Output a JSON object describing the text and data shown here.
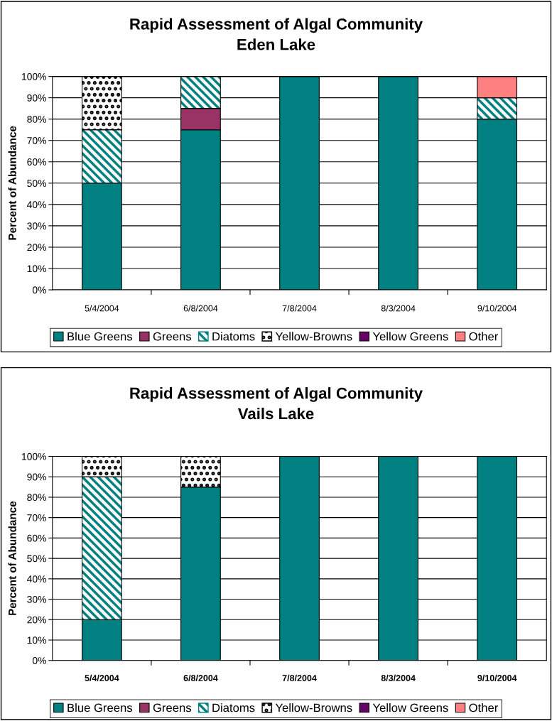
{
  "chart_data": [
    {
      "type": "bar",
      "title": "Rapid Assessment of Algal Community\nEden Lake",
      "ylabel": "Percent of Abundance",
      "stacked": true,
      "categories": [
        "5/4/2004",
        "6/8/2004",
        "7/8/2004",
        "8/3/2004",
        "9/10/2004"
      ],
      "ylim": [
        0,
        100
      ],
      "yticks": [
        {
          "value": 0,
          "label": "0%"
        },
        {
          "value": 10,
          "label": "10%"
        },
        {
          "value": 20,
          "label": "20%"
        },
        {
          "value": 30,
          "label": "30%"
        },
        {
          "value": 40,
          "label": "40%"
        },
        {
          "value": 50,
          "label": "50%"
        },
        {
          "value": 60,
          "label": "60%"
        },
        {
          "value": 70,
          "label": "70%"
        },
        {
          "value": 80,
          "label": "80%"
        },
        {
          "value": 90,
          "label": "90%"
        },
        {
          "value": 100,
          "label": "100%"
        }
      ],
      "grid": "y",
      "legend": "bottom",
      "series": [
        {
          "name": "Blue Greens",
          "color": "#008080",
          "values": [
            50,
            75,
            100,
            100,
            80
          ]
        },
        {
          "name": "Greens",
          "color": "#993366",
          "values": [
            null,
            10,
            null,
            null,
            null
          ]
        },
        {
          "name": "Diatoms",
          "color": "#008080",
          "values": [
            25,
            15,
            null,
            null,
            10
          ]
        },
        {
          "name": "Yellow-Browns",
          "color": "#000000",
          "values": [
            25,
            null,
            null,
            null,
            null
          ]
        },
        {
          "name": "Yellow Greens",
          "color": "#660066",
          "values": [
            null,
            null,
            null,
            null,
            null
          ]
        },
        {
          "name": "Other",
          "color": "#ff8080",
          "values": [
            null,
            null,
            null,
            null,
            10
          ]
        }
      ]
    },
    {
      "type": "bar",
      "title": "Rapid Assessment of Algal Community\nVails Lake",
      "ylabel": "Percent of Abundance",
      "stacked": true,
      "categories": [
        "5/4/2004",
        "6/8/2004",
        "7/8/2004",
        "8/3/2004",
        "9/10/2004"
      ],
      "ylim": [
        0,
        100
      ],
      "yticks": [
        {
          "value": 0,
          "label": "0%"
        },
        {
          "value": 10,
          "label": "10%"
        },
        {
          "value": 20,
          "label": "20%"
        },
        {
          "value": 30,
          "label": "30%"
        },
        {
          "value": 40,
          "label": "40%"
        },
        {
          "value": 50,
          "label": "50%"
        },
        {
          "value": 60,
          "label": "60%"
        },
        {
          "value": 70,
          "label": "70%"
        },
        {
          "value": 80,
          "label": "80%"
        },
        {
          "value": 90,
          "label": "90%"
        },
        {
          "value": 100,
          "label": "100%"
        }
      ],
      "grid": "y",
      "legend": "bottom",
      "series": [
        {
          "name": "Blue Greens",
          "color": "#008080",
          "values": [
            20,
            85,
            100,
            100,
            100
          ]
        },
        {
          "name": "Greens",
          "color": "#993366",
          "values": [
            null,
            null,
            null,
            null,
            null
          ]
        },
        {
          "name": "Diatoms",
          "color": "#008080",
          "values": [
            70,
            null,
            null,
            null,
            null
          ]
        },
        {
          "name": "Yellow-Browns",
          "color": "#000000",
          "values": [
            10,
            15,
            null,
            null,
            null
          ]
        },
        {
          "name": "Yellow Greens",
          "color": "#660066",
          "values": [
            null,
            null,
            null,
            null,
            null
          ]
        },
        {
          "name": "Other",
          "color": "#ff8080",
          "values": [
            null,
            null,
            null,
            null,
            null
          ]
        }
      ]
    }
  ]
}
